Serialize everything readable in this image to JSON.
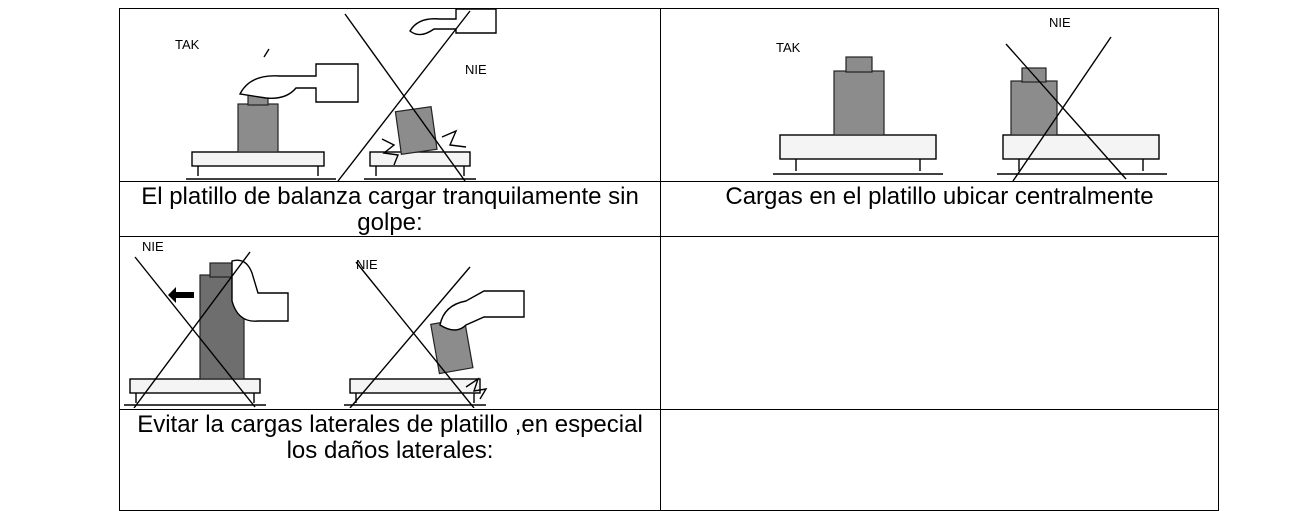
{
  "table": {
    "rows": [
      {
        "cells": [
          {
            "labels": [
              "TAK",
              "NIE"
            ]
          },
          {
            "labels": [
              "TAK",
              "NIE"
            ]
          }
        ]
      },
      {
        "cells": [
          "El platillo de balanza cargar tranquilamente sin golpe:",
          "Cargas en el platillo ubicar centralmente"
        ]
      },
      {
        "cells": [
          {
            "labels": [
              "NIE",
              "NIE"
            ]
          }
        ]
      },
      {
        "cells": [
          "Evitar la cargas laterales de platillo ,en especial los daños laterales:"
        ]
      }
    ]
  }
}
